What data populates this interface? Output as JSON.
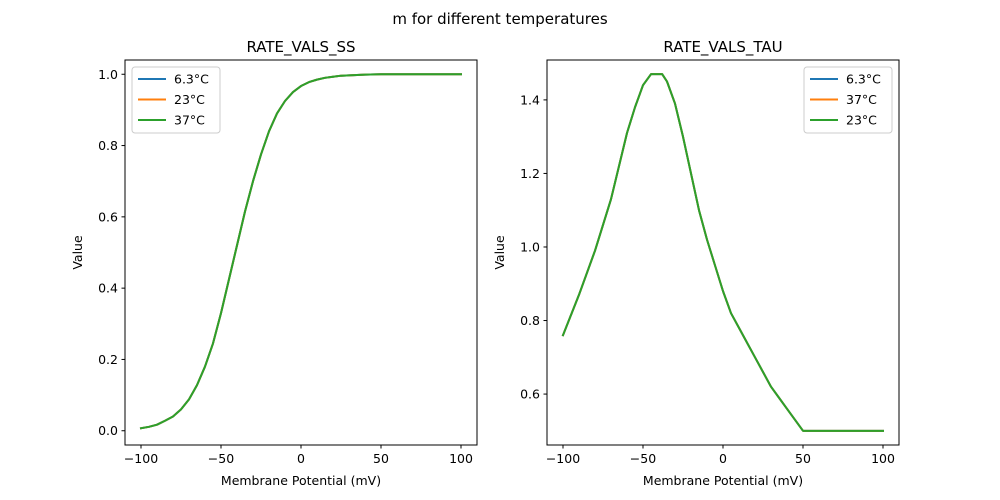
{
  "figure": {
    "suptitle": "m for different temperatures"
  },
  "chart_data": [
    {
      "type": "line",
      "title": "RATE_VALS_SS",
      "xlabel": "Membrane Potential (mV)",
      "ylabel": "Value",
      "xlim": [
        -110,
        110
      ],
      "ylim": [
        -0.04,
        1.04
      ],
      "xticks": [
        -100,
        -50,
        0,
        50,
        100
      ],
      "xtick_labels": [
        "−100",
        "−50",
        "0",
        "50",
        "100"
      ],
      "yticks": [
        0.0,
        0.2,
        0.4,
        0.6,
        0.8,
        1.0
      ],
      "ytick_labels": [
        "0.0",
        "0.2",
        "0.4",
        "0.6",
        "0.8",
        "1.0"
      ],
      "legend_position": "upper-left",
      "grid": false,
      "x": [
        -100,
        -95,
        -90,
        -85,
        -80,
        -75,
        -70,
        -65,
        -60,
        -55,
        -50,
        -45,
        -40,
        -35,
        -30,
        -25,
        -20,
        -15,
        -10,
        -5,
        0,
        5,
        10,
        15,
        20,
        25,
        30,
        35,
        40,
        50,
        60,
        70,
        80,
        90,
        100
      ],
      "series": [
        {
          "name": "6.3°C",
          "color": "#1f77b4",
          "values": [
            0.007,
            0.011,
            0.017,
            0.028,
            0.04,
            0.06,
            0.088,
            0.128,
            0.18,
            0.245,
            0.33,
            0.425,
            0.52,
            0.615,
            0.7,
            0.775,
            0.84,
            0.89,
            0.925,
            0.95,
            0.967,
            0.978,
            0.985,
            0.99,
            0.993,
            0.996,
            0.997,
            0.998,
            0.999,
            1.0,
            1.0,
            1.0,
            1.0,
            1.0,
            1.0
          ]
        },
        {
          "name": "23°C",
          "color": "#ff7f0e",
          "values": [
            0.007,
            0.011,
            0.017,
            0.028,
            0.04,
            0.06,
            0.088,
            0.128,
            0.18,
            0.245,
            0.33,
            0.425,
            0.52,
            0.615,
            0.7,
            0.775,
            0.84,
            0.89,
            0.925,
            0.95,
            0.967,
            0.978,
            0.985,
            0.99,
            0.993,
            0.996,
            0.997,
            0.998,
            0.999,
            1.0,
            1.0,
            1.0,
            1.0,
            1.0,
            1.0
          ]
        },
        {
          "name": "37°C",
          "color": "#2ca02c",
          "values": [
            0.007,
            0.011,
            0.017,
            0.028,
            0.04,
            0.06,
            0.088,
            0.128,
            0.18,
            0.245,
            0.33,
            0.425,
            0.52,
            0.615,
            0.7,
            0.775,
            0.84,
            0.89,
            0.925,
            0.95,
            0.967,
            0.978,
            0.985,
            0.99,
            0.993,
            0.996,
            0.997,
            0.998,
            0.999,
            1.0,
            1.0,
            1.0,
            1.0,
            1.0,
            1.0
          ]
        }
      ]
    },
    {
      "type": "line",
      "title": "RATE_VALS_TAU",
      "xlabel": "Membrane Potential (mV)",
      "ylabel": "Value",
      "xlim": [
        -110,
        110
      ],
      "ylim": [
        0.4615,
        1.5085
      ],
      "xticks": [
        -100,
        -50,
        0,
        50,
        100
      ],
      "xtick_labels": [
        "−100",
        "−50",
        "0",
        "50",
        "100"
      ],
      "yticks": [
        0.6,
        0.8,
        1.0,
        1.2,
        1.4
      ],
      "ytick_labels": [
        "0.6",
        "0.8",
        "1.0",
        "1.2",
        "1.4"
      ],
      "legend_position": "upper-right",
      "grid": false,
      "x": [
        -100,
        -90,
        -80,
        -70,
        -60,
        -55,
        -50,
        -45,
        -42,
        -40,
        -38,
        -35,
        -30,
        -25,
        -20,
        -15,
        -10,
        -5,
        0,
        5,
        10,
        15,
        20,
        25,
        30,
        35,
        40,
        45,
        50,
        60,
        70,
        80,
        90,
        100
      ],
      "series": [
        {
          "name": "6.3°C",
          "color": "#1f77b4",
          "values": [
            0.76,
            0.87,
            0.99,
            1.13,
            1.31,
            1.38,
            1.44,
            1.47,
            1.47,
            1.47,
            1.47,
            1.45,
            1.39,
            1.3,
            1.2,
            1.1,
            1.02,
            0.95,
            0.88,
            0.82,
            0.78,
            0.74,
            0.7,
            0.66,
            0.62,
            0.59,
            0.56,
            0.53,
            0.5,
            0.5,
            0.5,
            0.5,
            0.5,
            0.5
          ]
        },
        {
          "name": "37°C",
          "color": "#ff7f0e",
          "values": [
            0.76,
            0.87,
            0.99,
            1.13,
            1.31,
            1.38,
            1.44,
            1.47,
            1.47,
            1.47,
            1.47,
            1.45,
            1.39,
            1.3,
            1.2,
            1.1,
            1.02,
            0.95,
            0.88,
            0.82,
            0.78,
            0.74,
            0.7,
            0.66,
            0.62,
            0.59,
            0.56,
            0.53,
            0.5,
            0.5,
            0.5,
            0.5,
            0.5,
            0.5
          ]
        },
        {
          "name": "23°C",
          "color": "#2ca02c",
          "values": [
            0.76,
            0.87,
            0.99,
            1.13,
            1.31,
            1.38,
            1.44,
            1.47,
            1.47,
            1.47,
            1.47,
            1.45,
            1.39,
            1.3,
            1.2,
            1.1,
            1.02,
            0.95,
            0.88,
            0.82,
            0.78,
            0.74,
            0.7,
            0.66,
            0.62,
            0.59,
            0.56,
            0.53,
            0.5,
            0.5,
            0.5,
            0.5,
            0.5,
            0.5
          ]
        }
      ]
    }
  ]
}
